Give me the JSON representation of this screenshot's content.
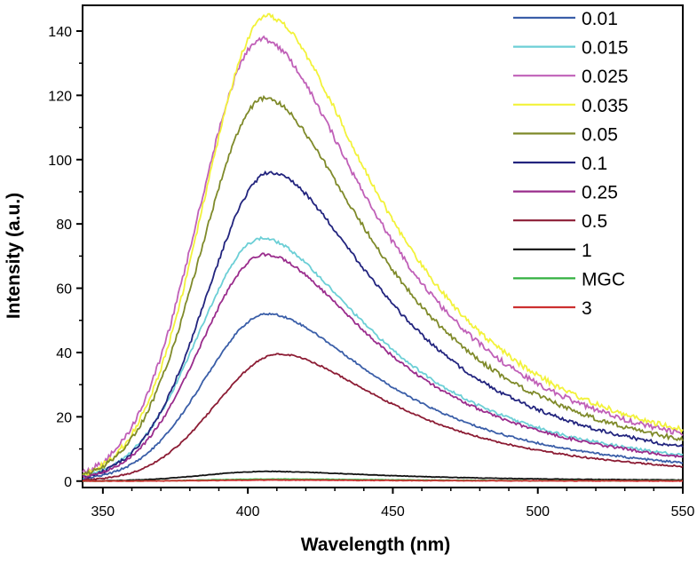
{
  "chart_data": {
    "type": "line",
    "xlabel": "Wavelength (nm)",
    "ylabel": "Intensity (a.u.)",
    "xlim": [
      343,
      550
    ],
    "ylim": [
      -2,
      148
    ],
    "x_ticks": [
      350,
      400,
      450,
      500,
      550
    ],
    "y_ticks": [
      0,
      20,
      40,
      60,
      80,
      100,
      120,
      140
    ],
    "grid": false,
    "legend_position": "top-right",
    "series": [
      {
        "name": "0.01",
        "color": "#3a5ea8",
        "peak": 52,
        "peak_x": 407
      },
      {
        "name": "0.015",
        "color": "#6ccfd6",
        "peak": 75.5,
        "peak_x": 405
      },
      {
        "name": "0.025",
        "color": "#c060b8",
        "peak": 137.5,
        "peak_x": 405
      },
      {
        "name": "0.035",
        "color": "#f2f23a",
        "peak": 144.5,
        "peak_x": 407
      },
      {
        "name": "0.05",
        "color": "#7f8a2a",
        "peak": 119,
        "peak_x": 406
      },
      {
        "name": "0.1",
        "color": "#22247e",
        "peak": 96,
        "peak_x": 408
      },
      {
        "name": "0.25",
        "color": "#9a2c8c",
        "peak": 70.5,
        "peak_x": 406
      },
      {
        "name": "0.5",
        "color": "#8c1c34",
        "peak": 39.5,
        "peak_x": 411
      },
      {
        "name": "1",
        "color": "#111111",
        "peak": 3,
        "peak_x": 407
      },
      {
        "name": "MGC",
        "color": "#33b040",
        "peak": 0.6,
        "peak_x": 410
      },
      {
        "name": "3",
        "color": "#cc3030",
        "peak": 0.3,
        "peak_x": 410
      }
    ]
  }
}
